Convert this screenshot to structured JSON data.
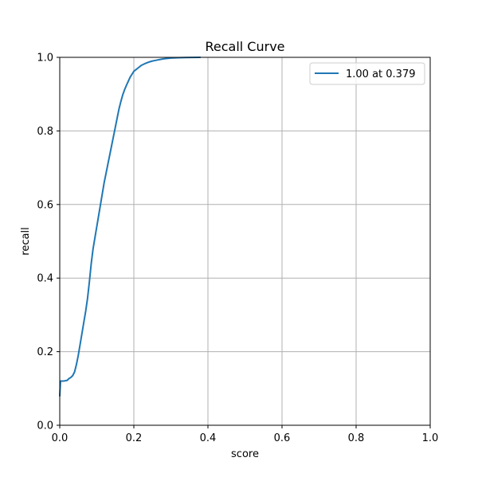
{
  "chart_data": {
    "type": "line",
    "title": "Recall Curve",
    "xlabel": "score",
    "ylabel": "recall",
    "xlim": [
      0.0,
      1.0
    ],
    "ylim": [
      0.0,
      1.0
    ],
    "xticks": [
      "0.0",
      "0.2",
      "0.4",
      "0.6",
      "0.8",
      "1.0"
    ],
    "yticks": [
      "0.0",
      "0.2",
      "0.4",
      "0.6",
      "0.8",
      "1.0"
    ],
    "grid": true,
    "legend": {
      "placement": "top-right",
      "entries": [
        "1.00 at 0.379"
      ]
    },
    "series": [
      {
        "name": "1.00 at 0.379",
        "color": "#1f77b4",
        "x": [
          0.0,
          0.002,
          0.005,
          0.01,
          0.02,
          0.025,
          0.03,
          0.035,
          0.04,
          0.045,
          0.05,
          0.055,
          0.06,
          0.065,
          0.07,
          0.075,
          0.08,
          0.085,
          0.09,
          0.095,
          0.1,
          0.105,
          0.11,
          0.115,
          0.12,
          0.125,
          0.13,
          0.135,
          0.14,
          0.145,
          0.15,
          0.155,
          0.16,
          0.165,
          0.17,
          0.175,
          0.18,
          0.185,
          0.19,
          0.195,
          0.2,
          0.205,
          0.21,
          0.215,
          0.22,
          0.23,
          0.24,
          0.25,
          0.26,
          0.27,
          0.28,
          0.29,
          0.3,
          0.32,
          0.34,
          0.36,
          0.379
        ],
        "y": [
          0.08,
          0.12,
          0.12,
          0.12,
          0.122,
          0.127,
          0.13,
          0.135,
          0.145,
          0.165,
          0.19,
          0.22,
          0.25,
          0.28,
          0.31,
          0.345,
          0.39,
          0.44,
          0.48,
          0.51,
          0.54,
          0.57,
          0.6,
          0.63,
          0.66,
          0.685,
          0.71,
          0.735,
          0.76,
          0.785,
          0.81,
          0.835,
          0.86,
          0.88,
          0.898,
          0.912,
          0.924,
          0.935,
          0.946,
          0.954,
          0.962,
          0.966,
          0.97,
          0.974,
          0.978,
          0.983,
          0.987,
          0.99,
          0.992,
          0.994,
          0.996,
          0.997,
          0.998,
          0.999,
          0.9995,
          0.9998,
          1.0
        ]
      }
    ]
  }
}
